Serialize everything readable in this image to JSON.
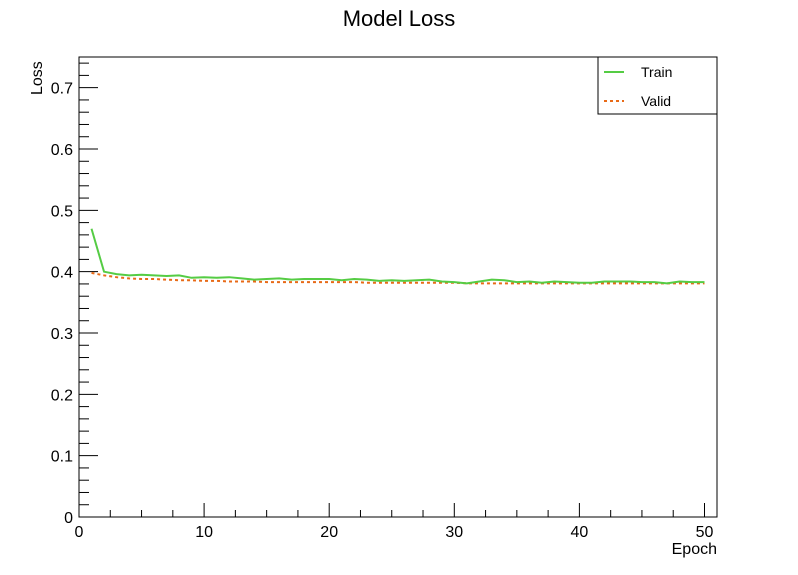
{
  "chart_data": {
    "type": "line",
    "title": "Model Loss",
    "xlabel": "Epoch",
    "ylabel": "Loss",
    "xlim": [
      0,
      51
    ],
    "ylim": [
      0,
      0.75
    ],
    "x_ticks": [
      0,
      10,
      20,
      30,
      40,
      50
    ],
    "x_tick_labels": [
      "0",
      "10",
      "20",
      "30",
      "40",
      "50"
    ],
    "y_ticks": [
      0,
      0.1,
      0.2,
      0.3,
      0.4,
      0.5,
      0.6,
      0.7
    ],
    "y_tick_labels": [
      "0",
      "0.1",
      "0.2",
      "0.3",
      "0.4",
      "0.5",
      "0.6",
      "0.7"
    ],
    "grid": false,
    "legend": "top-right",
    "x": [
      1,
      2,
      3,
      4,
      5,
      6,
      7,
      8,
      9,
      10,
      11,
      12,
      13,
      14,
      15,
      16,
      17,
      18,
      19,
      20,
      21,
      22,
      23,
      24,
      25,
      26,
      27,
      28,
      29,
      30,
      31,
      32,
      33,
      34,
      35,
      36,
      37,
      38,
      39,
      40,
      41,
      42,
      43,
      44,
      45,
      46,
      47,
      48,
      49,
      50
    ],
    "series": [
      {
        "name": "Train",
        "color": "#55cc44",
        "style": "solid",
        "values": [
          0.47,
          0.4,
          0.396,
          0.394,
          0.395,
          0.394,
          0.393,
          0.394,
          0.39,
          0.391,
          0.39,
          0.391,
          0.389,
          0.387,
          0.388,
          0.389,
          0.387,
          0.388,
          0.388,
          0.388,
          0.386,
          0.388,
          0.387,
          0.385,
          0.386,
          0.385,
          0.386,
          0.387,
          0.384,
          0.383,
          0.381,
          0.384,
          0.387,
          0.386,
          0.383,
          0.384,
          0.382,
          0.384,
          0.383,
          0.382,
          0.382,
          0.384,
          0.384,
          0.384,
          0.383,
          0.383,
          0.381,
          0.384,
          0.383,
          0.383
        ]
      },
      {
        "name": "Valid",
        "color": "#e86a17",
        "style": "dotted",
        "values": [
          0.398,
          0.394,
          0.391,
          0.389,
          0.388,
          0.388,
          0.387,
          0.386,
          0.386,
          0.385,
          0.385,
          0.384,
          0.384,
          0.384,
          0.383,
          0.383,
          0.383,
          0.383,
          0.383,
          0.383,
          0.383,
          0.383,
          0.382,
          0.382,
          0.382,
          0.382,
          0.382,
          0.382,
          0.382,
          0.382,
          0.381,
          0.381,
          0.381,
          0.381,
          0.381,
          0.381,
          0.381,
          0.381,
          0.381,
          0.381,
          0.381,
          0.381,
          0.381,
          0.381,
          0.381,
          0.381,
          0.381,
          0.381,
          0.381,
          0.381
        ]
      }
    ]
  }
}
